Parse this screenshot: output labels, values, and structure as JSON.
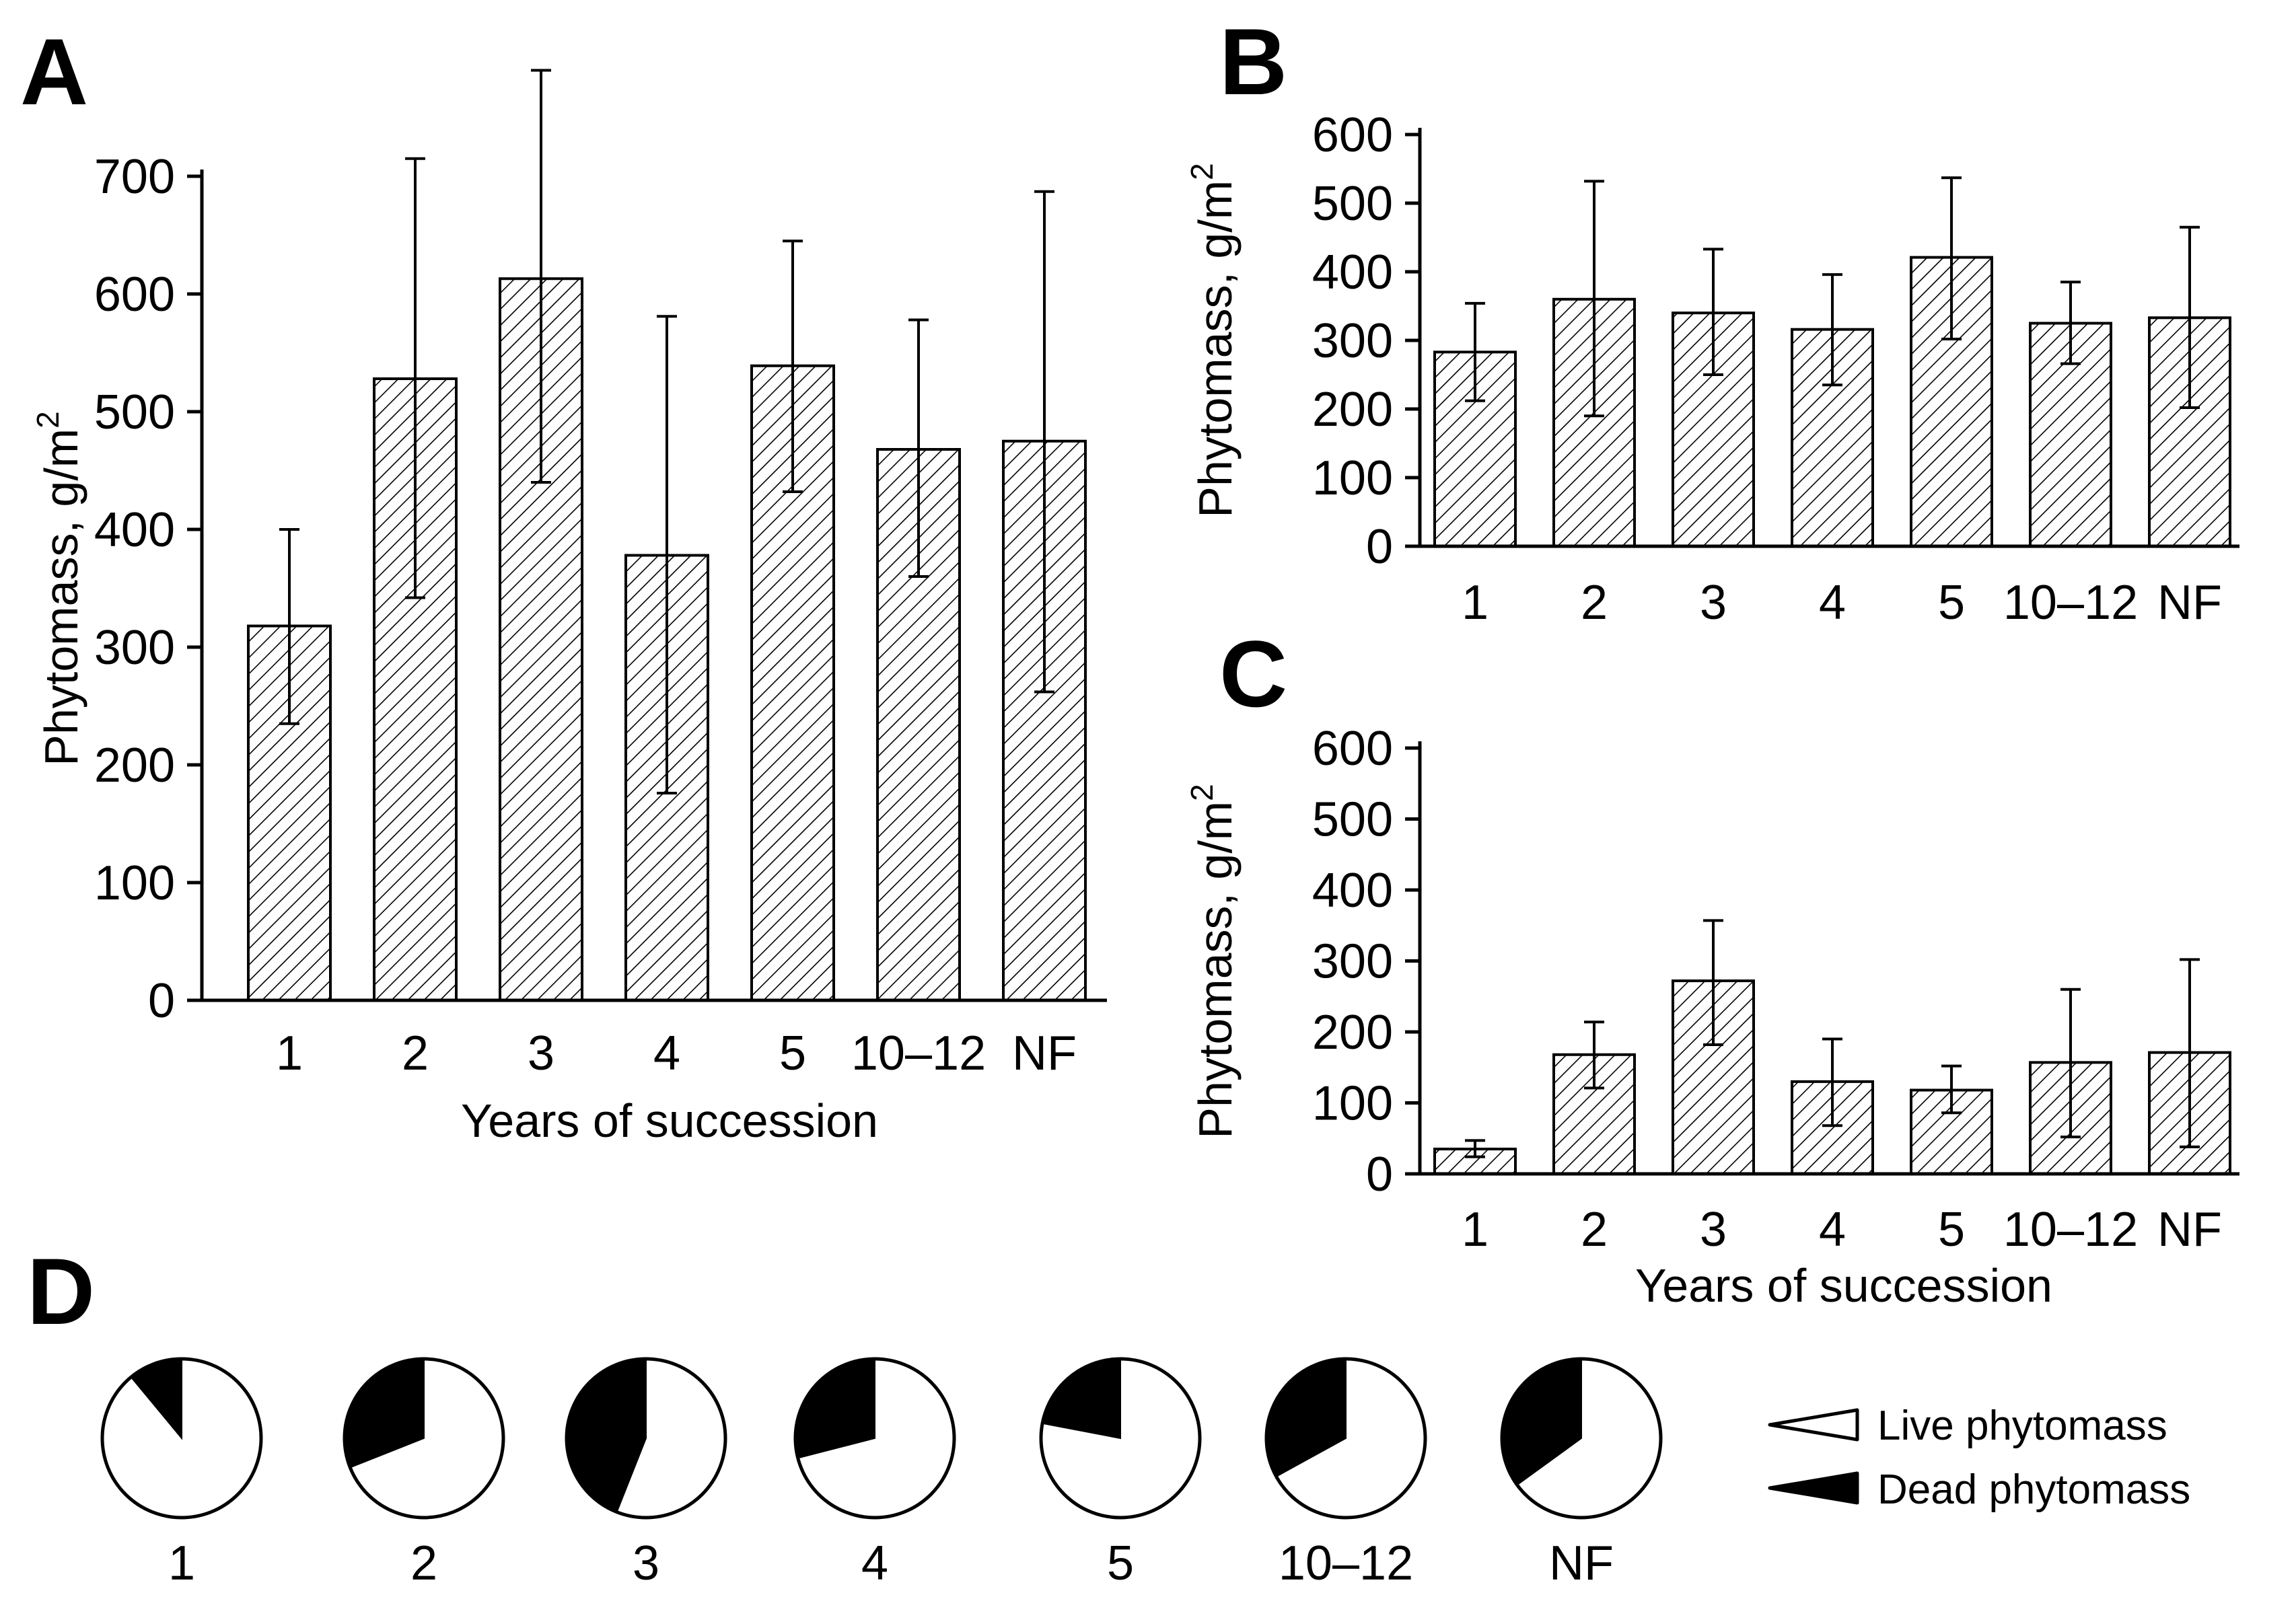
{
  "figure": {
    "panel_labels": {
      "A": "A",
      "B": "B",
      "C": "C",
      "D": "D"
    }
  },
  "chart_data": [
    {
      "panel": "A",
      "type": "bar",
      "ylabel": "Phytomass, g/m",
      "ylabel_sup": "2",
      "xlabel": "Years of succession",
      "ylim": [
        0,
        700
      ],
      "yticks": [
        "0",
        "100",
        "200",
        "300",
        "400",
        "500",
        "600",
        "700"
      ],
      "categories": [
        "1",
        "2",
        "3",
        "4",
        "5",
        "10–12",
        "NF"
      ],
      "values": [
        318,
        528,
        613,
        378,
        539,
        468,
        475
      ],
      "err_low": [
        235,
        342,
        440,
        176,
        432,
        360,
        262
      ],
      "err_high": [
        400,
        715,
        790,
        581,
        645,
        578,
        687
      ]
    },
    {
      "panel": "B",
      "type": "bar",
      "ylabel": "Phytomass, g/m",
      "ylabel_sup": "2",
      "xlabel": "",
      "ylim": [
        0,
        600
      ],
      "yticks": [
        "0",
        "100",
        "200",
        "300",
        "400",
        "500",
        "600"
      ],
      "categories": [
        "1",
        "2",
        "3",
        "4",
        "5",
        "10–12",
        "NF"
      ],
      "values": [
        283,
        360,
        340,
        316,
        421,
        325,
        333
      ],
      "err_low": [
        212,
        190,
        250,
        235,
        302,
        266,
        202
      ],
      "err_high": [
        354,
        532,
        433,
        396,
        537,
        385,
        465
      ]
    },
    {
      "panel": "C",
      "type": "bar",
      "ylabel": "Phytomass, g/m",
      "ylabel_sup": "2",
      "xlabel": "Years of succession",
      "ylim": [
        0,
        600
      ],
      "yticks": [
        "0",
        "100",
        "200",
        "300",
        "400",
        "500",
        "600"
      ],
      "categories": [
        "1",
        "2",
        "3",
        "4",
        "5",
        "10–12",
        "NF"
      ],
      "values": [
        35,
        168,
        272,
        130,
        118,
        157,
        171
      ],
      "err_low": [
        24,
        121,
        182,
        68,
        86,
        52,
        38
      ],
      "err_high": [
        47,
        214,
        357,
        190,
        152,
        260,
        302
      ]
    },
    {
      "panel": "D",
      "type": "pie",
      "categories": [
        "1",
        "2",
        "3",
        "4",
        "5",
        "10–12",
        "NF"
      ],
      "dead_fraction": [
        0.11,
        0.31,
        0.44,
        0.29,
        0.22,
        0.33,
        0.35
      ],
      "legend": [
        "Live phytomass",
        "Dead phytomass"
      ]
    }
  ]
}
